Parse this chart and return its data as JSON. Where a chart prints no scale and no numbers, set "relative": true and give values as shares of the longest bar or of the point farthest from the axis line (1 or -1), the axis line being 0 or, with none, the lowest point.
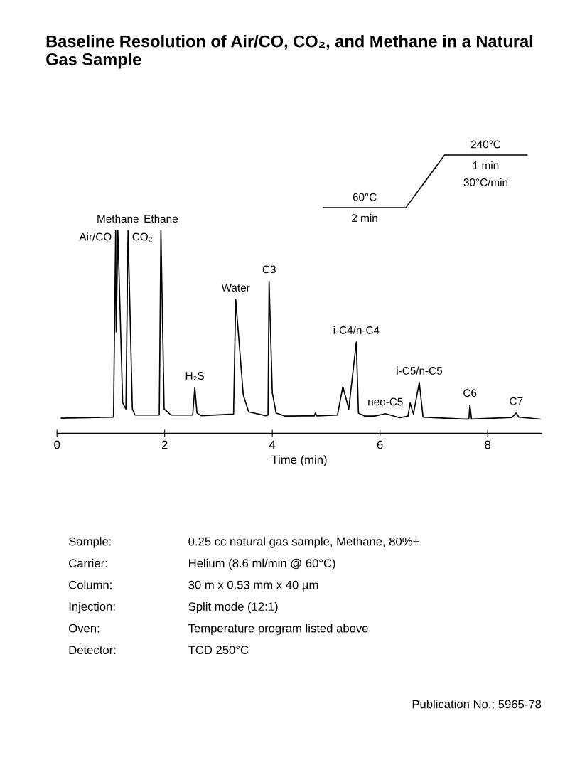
{
  "chart_data": {
    "type": "line",
    "title": "Baseline Resolution of Air/CO, CO₂, and Methane in a Natural Gas Sample",
    "xlabel": "Time (min)",
    "relative": true,
    "xlim": [
      0,
      9
    ],
    "xticks": [
      0,
      2,
      4,
      6,
      8
    ],
    "tick_labels": "x",
    "grid": false,
    "legend": false,
    "marker": "none",
    "line_style": "solid",
    "series": [
      {
        "color": "#000000",
        "x": [
          0.08,
          1.05,
          1.09,
          1.1,
          1.13,
          1.22,
          1.28,
          1.32,
          1.4,
          1.45,
          1.9,
          1.93,
          1.99,
          2.12,
          2.52,
          2.56,
          2.6,
          2.68,
          3.28,
          3.32,
          3.46,
          3.56,
          3.88,
          3.92,
          3.94,
          4.0,
          4.07,
          4.24,
          4.62,
          4.78,
          4.8,
          4.83,
          5.21,
          5.31,
          5.42,
          5.56,
          5.6,
          5.72,
          5.9,
          6.1,
          6.37,
          6.52,
          6.56,
          6.62,
          6.73,
          6.8,
          7.56,
          7.65,
          7.67,
          7.7,
          8.45,
          8.53,
          8.58,
          8.97
        ],
        "values": [
          0.075,
          0.08,
          1.0,
          0.5,
          1.0,
          0.15,
          0.12,
          1.0,
          0.12,
          0.09,
          0.09,
          1.0,
          0.12,
          0.09,
          0.09,
          0.225,
          0.1,
          0.087,
          0.095,
          0.66,
          0.19,
          0.106,
          0.087,
          0.09,
          0.75,
          0.2,
          0.1,
          0.085,
          0.086,
          0.086,
          0.1,
          0.086,
          0.09,
          0.23,
          0.12,
          0.45,
          0.1,
          0.085,
          0.085,
          0.097,
          0.077,
          0.085,
          0.15,
          0.095,
          0.25,
          0.08,
          0.07,
          0.07,
          0.14,
          0.07,
          0.078,
          0.1,
          0.08,
          0.07
        ]
      }
    ],
    "annotations": [
      {
        "text": "Air/CO",
        "x": 1.09,
        "y": 1.0
      },
      {
        "text": "Methane",
        "x": 1.13,
        "y": 1.0
      },
      {
        "text": "CO₂",
        "x": 1.32,
        "y": 1.0
      },
      {
        "text": "Ethane",
        "x": 1.93,
        "y": 1.0
      },
      {
        "text": "H₂S",
        "x": 2.56,
        "y": 0.225
      },
      {
        "text": "Water",
        "x": 3.32,
        "y": 0.66
      },
      {
        "text": "C3",
        "x": 3.94,
        "y": 0.75
      },
      {
        "text": "i-C4/n-C4",
        "x": 5.56,
        "y": 0.45
      },
      {
        "text": "neo-C5",
        "x": 6.1,
        "y": 0.097
      },
      {
        "text": "i-C5/n-C5",
        "x": 6.73,
        "y": 0.25
      },
      {
        "text": "C6",
        "x": 7.67,
        "y": 0.14
      },
      {
        "text": "C7",
        "x": 8.53,
        "y": 0.1
      },
      "240°C",
      "1 min",
      "30°C/min",
      "60°C",
      "2 min",
      "Sample:",
      "0.25 cc natural gas sample, Methane, 80%+",
      "Carrier:",
      "Helium (8.6 ml/min @ 60°C)",
      "Column:",
      "30 m x 0.53 mm x 40 µm",
      "Injection:",
      "Split mode (12:1)",
      "Oven:",
      "Temperature program listed above",
      "Detector:",
      "TCD 250°C",
      "Publication No.: 5965-78"
    ]
  }
}
